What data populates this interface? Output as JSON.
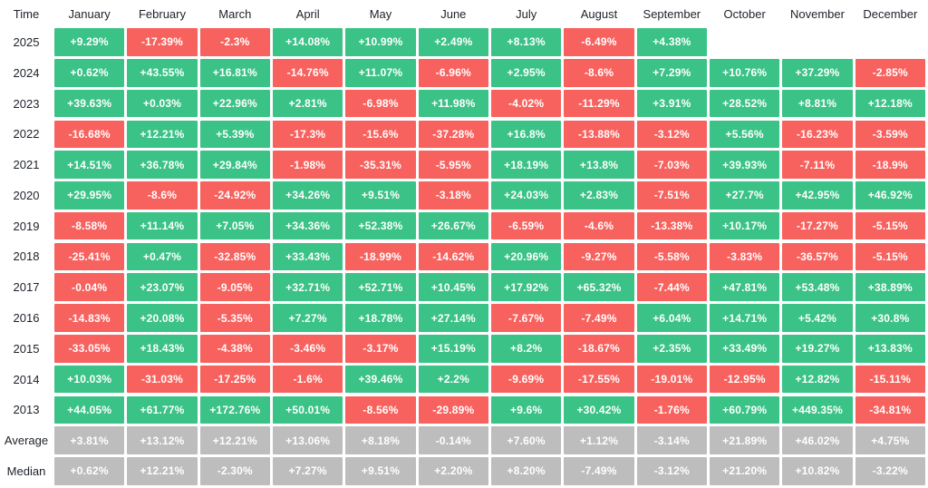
{
  "table": {
    "corner_label": "Time",
    "months": [
      "January",
      "February",
      "March",
      "April",
      "May",
      "June",
      "July",
      "August",
      "September",
      "October",
      "November",
      "December"
    ],
    "colors": {
      "positive": "#3bc286",
      "negative": "#f7625e",
      "neutral": "#bdbdbd"
    },
    "rows": [
      {
        "label": "2025",
        "summary": false,
        "cells": [
          "+9.29%",
          "-17.39%",
          "-2.3%",
          "+14.08%",
          "+10.99%",
          "+2.49%",
          "+8.13%",
          "-6.49%",
          "+4.38%",
          null,
          null,
          null
        ]
      },
      {
        "label": "2024",
        "summary": false,
        "cells": [
          "+0.62%",
          "+43.55%",
          "+16.81%",
          "-14.76%",
          "+11.07%",
          "-6.96%",
          "+2.95%",
          "-8.6%",
          "+7.29%",
          "+10.76%",
          "+37.29%",
          "-2.85%"
        ]
      },
      {
        "label": "2023",
        "summary": false,
        "cells": [
          "+39.63%",
          "+0.03%",
          "+22.96%",
          "+2.81%",
          "-6.98%",
          "+11.98%",
          "-4.02%",
          "-11.29%",
          "+3.91%",
          "+28.52%",
          "+8.81%",
          "+12.18%"
        ]
      },
      {
        "label": "2022",
        "summary": false,
        "cells": [
          "-16.68%",
          "+12.21%",
          "+5.39%",
          "-17.3%",
          "-15.6%",
          "-37.28%",
          "+16.8%",
          "-13.88%",
          "-3.12%",
          "+5.56%",
          "-16.23%",
          "-3.59%"
        ]
      },
      {
        "label": "2021",
        "summary": false,
        "cells": [
          "+14.51%",
          "+36.78%",
          "+29.84%",
          "-1.98%",
          "-35.31%",
          "-5.95%",
          "+18.19%",
          "+13.8%",
          "-7.03%",
          "+39.93%",
          "-7.11%",
          "-18.9%"
        ]
      },
      {
        "label": "2020",
        "summary": false,
        "cells": [
          "+29.95%",
          "-8.6%",
          "-24.92%",
          "+34.26%",
          "+9.51%",
          "-3.18%",
          "+24.03%",
          "+2.83%",
          "-7.51%",
          "+27.7%",
          "+42.95%",
          "+46.92%"
        ]
      },
      {
        "label": "2019",
        "summary": false,
        "cells": [
          "-8.58%",
          "+11.14%",
          "+7.05%",
          "+34.36%",
          "+52.38%",
          "+26.67%",
          "-6.59%",
          "-4.6%",
          "-13.38%",
          "+10.17%",
          "-17.27%",
          "-5.15%"
        ]
      },
      {
        "label": "2018",
        "summary": false,
        "cells": [
          "-25.41%",
          "+0.47%",
          "-32.85%",
          "+33.43%",
          "-18.99%",
          "-14.62%",
          "+20.96%",
          "-9.27%",
          "-5.58%",
          "-3.83%",
          "-36.57%",
          "-5.15%"
        ]
      },
      {
        "label": "2017",
        "summary": false,
        "cells": [
          "-0.04%",
          "+23.07%",
          "-9.05%",
          "+32.71%",
          "+52.71%",
          "+10.45%",
          "+17.92%",
          "+65.32%",
          "-7.44%",
          "+47.81%",
          "+53.48%",
          "+38.89%"
        ]
      },
      {
        "label": "2016",
        "summary": false,
        "cells": [
          "-14.83%",
          "+20.08%",
          "-5.35%",
          "+7.27%",
          "+18.78%",
          "+27.14%",
          "-7.67%",
          "-7.49%",
          "+6.04%",
          "+14.71%",
          "+5.42%",
          "+30.8%"
        ]
      },
      {
        "label": "2015",
        "summary": false,
        "cells": [
          "-33.05%",
          "+18.43%",
          "-4.38%",
          "-3.46%",
          "-3.17%",
          "+15.19%",
          "+8.2%",
          "-18.67%",
          "+2.35%",
          "+33.49%",
          "+19.27%",
          "+13.83%"
        ]
      },
      {
        "label": "2014",
        "summary": false,
        "cells": [
          "+10.03%",
          "-31.03%",
          "-17.25%",
          "-1.6%",
          "+39.46%",
          "+2.2%",
          "-9.69%",
          "-17.55%",
          "-19.01%",
          "-12.95%",
          "+12.82%",
          "-15.11%"
        ]
      },
      {
        "label": "2013",
        "summary": false,
        "cells": [
          "+44.05%",
          "+61.77%",
          "+172.76%",
          "+50.01%",
          "-8.56%",
          "-29.89%",
          "+9.6%",
          "+30.42%",
          "-1.76%",
          "+60.79%",
          "+449.35%",
          "-34.81%"
        ]
      },
      {
        "label": "Average",
        "summary": true,
        "cells": [
          "+3.81%",
          "+13.12%",
          "+12.21%",
          "+13.06%",
          "+8.18%",
          "-0.14%",
          "+7.60%",
          "+1.12%",
          "-3.14%",
          "+21.89%",
          "+46.02%",
          "+4.75%"
        ]
      },
      {
        "label": "Median",
        "summary": true,
        "cells": [
          "+0.62%",
          "+12.21%",
          "-2.30%",
          "+7.27%",
          "+9.51%",
          "+2.20%",
          "+8.20%",
          "-7.49%",
          "-3.12%",
          "+21.20%",
          "+10.82%",
          "-3.22%"
        ]
      }
    ]
  },
  "chart_data": {
    "type": "heatmap",
    "corner_label": "Time",
    "categories": [
      "January",
      "February",
      "March",
      "April",
      "May",
      "June",
      "July",
      "August",
      "September",
      "October",
      "November",
      "December"
    ],
    "value_unit": "%",
    "color_coding": {
      "positive": "#3bc286",
      "negative": "#f7625e",
      "summary_rows": "#bdbdbd"
    },
    "series": [
      {
        "name": "2025",
        "values": [
          9.29,
          -17.39,
          -2.3,
          14.08,
          10.99,
          2.49,
          8.13,
          -6.49,
          4.38,
          null,
          null,
          null
        ]
      },
      {
        "name": "2024",
        "values": [
          0.62,
          43.55,
          16.81,
          -14.76,
          11.07,
          -6.96,
          2.95,
          -8.6,
          7.29,
          10.76,
          37.29,
          -2.85
        ]
      },
      {
        "name": "2023",
        "values": [
          39.63,
          0.03,
          22.96,
          2.81,
          -6.98,
          11.98,
          -4.02,
          -11.29,
          3.91,
          28.52,
          8.81,
          12.18
        ]
      },
      {
        "name": "2022",
        "values": [
          -16.68,
          12.21,
          5.39,
          -17.3,
          -15.6,
          -37.28,
          16.8,
          -13.88,
          -3.12,
          5.56,
          -16.23,
          -3.59
        ]
      },
      {
        "name": "2021",
        "values": [
          14.51,
          36.78,
          29.84,
          -1.98,
          -35.31,
          -5.95,
          18.19,
          13.8,
          -7.03,
          39.93,
          -7.11,
          -18.9
        ]
      },
      {
        "name": "2020",
        "values": [
          29.95,
          -8.6,
          -24.92,
          34.26,
          9.51,
          -3.18,
          24.03,
          2.83,
          -7.51,
          27.7,
          42.95,
          46.92
        ]
      },
      {
        "name": "2019",
        "values": [
          -8.58,
          11.14,
          7.05,
          34.36,
          52.38,
          26.67,
          -6.59,
          -4.6,
          -13.38,
          10.17,
          -17.27,
          -5.15
        ]
      },
      {
        "name": "2018",
        "values": [
          -25.41,
          0.47,
          -32.85,
          33.43,
          -18.99,
          -14.62,
          20.96,
          -9.27,
          -5.58,
          -3.83,
          -36.57,
          -5.15
        ]
      },
      {
        "name": "2017",
        "values": [
          -0.04,
          23.07,
          -9.05,
          32.71,
          52.71,
          10.45,
          17.92,
          65.32,
          -7.44,
          47.81,
          53.48,
          38.89
        ]
      },
      {
        "name": "2016",
        "values": [
          -14.83,
          20.08,
          -5.35,
          7.27,
          18.78,
          27.14,
          -7.67,
          -7.49,
          6.04,
          14.71,
          5.42,
          30.8
        ]
      },
      {
        "name": "2015",
        "values": [
          -33.05,
          18.43,
          -4.38,
          -3.46,
          -3.17,
          15.19,
          8.2,
          -18.67,
          2.35,
          33.49,
          19.27,
          13.83
        ]
      },
      {
        "name": "2014",
        "values": [
          10.03,
          -31.03,
          -17.25,
          -1.6,
          39.46,
          2.2,
          -9.69,
          -17.55,
          -19.01,
          -12.95,
          12.82,
          -15.11
        ]
      },
      {
        "name": "2013",
        "values": [
          44.05,
          61.77,
          172.76,
          50.01,
          -8.56,
          -29.89,
          9.6,
          30.42,
          -1.76,
          60.79,
          449.35,
          -34.81
        ]
      },
      {
        "name": "Average",
        "values": [
          3.81,
          13.12,
          12.21,
          13.06,
          8.18,
          -0.14,
          7.6,
          1.12,
          -3.14,
          21.89,
          46.02,
          4.75
        ]
      },
      {
        "name": "Median",
        "values": [
          0.62,
          12.21,
          -2.3,
          7.27,
          9.51,
          2.2,
          8.2,
          -7.49,
          -3.12,
          21.2,
          10.82,
          -3.22
        ]
      }
    ]
  }
}
